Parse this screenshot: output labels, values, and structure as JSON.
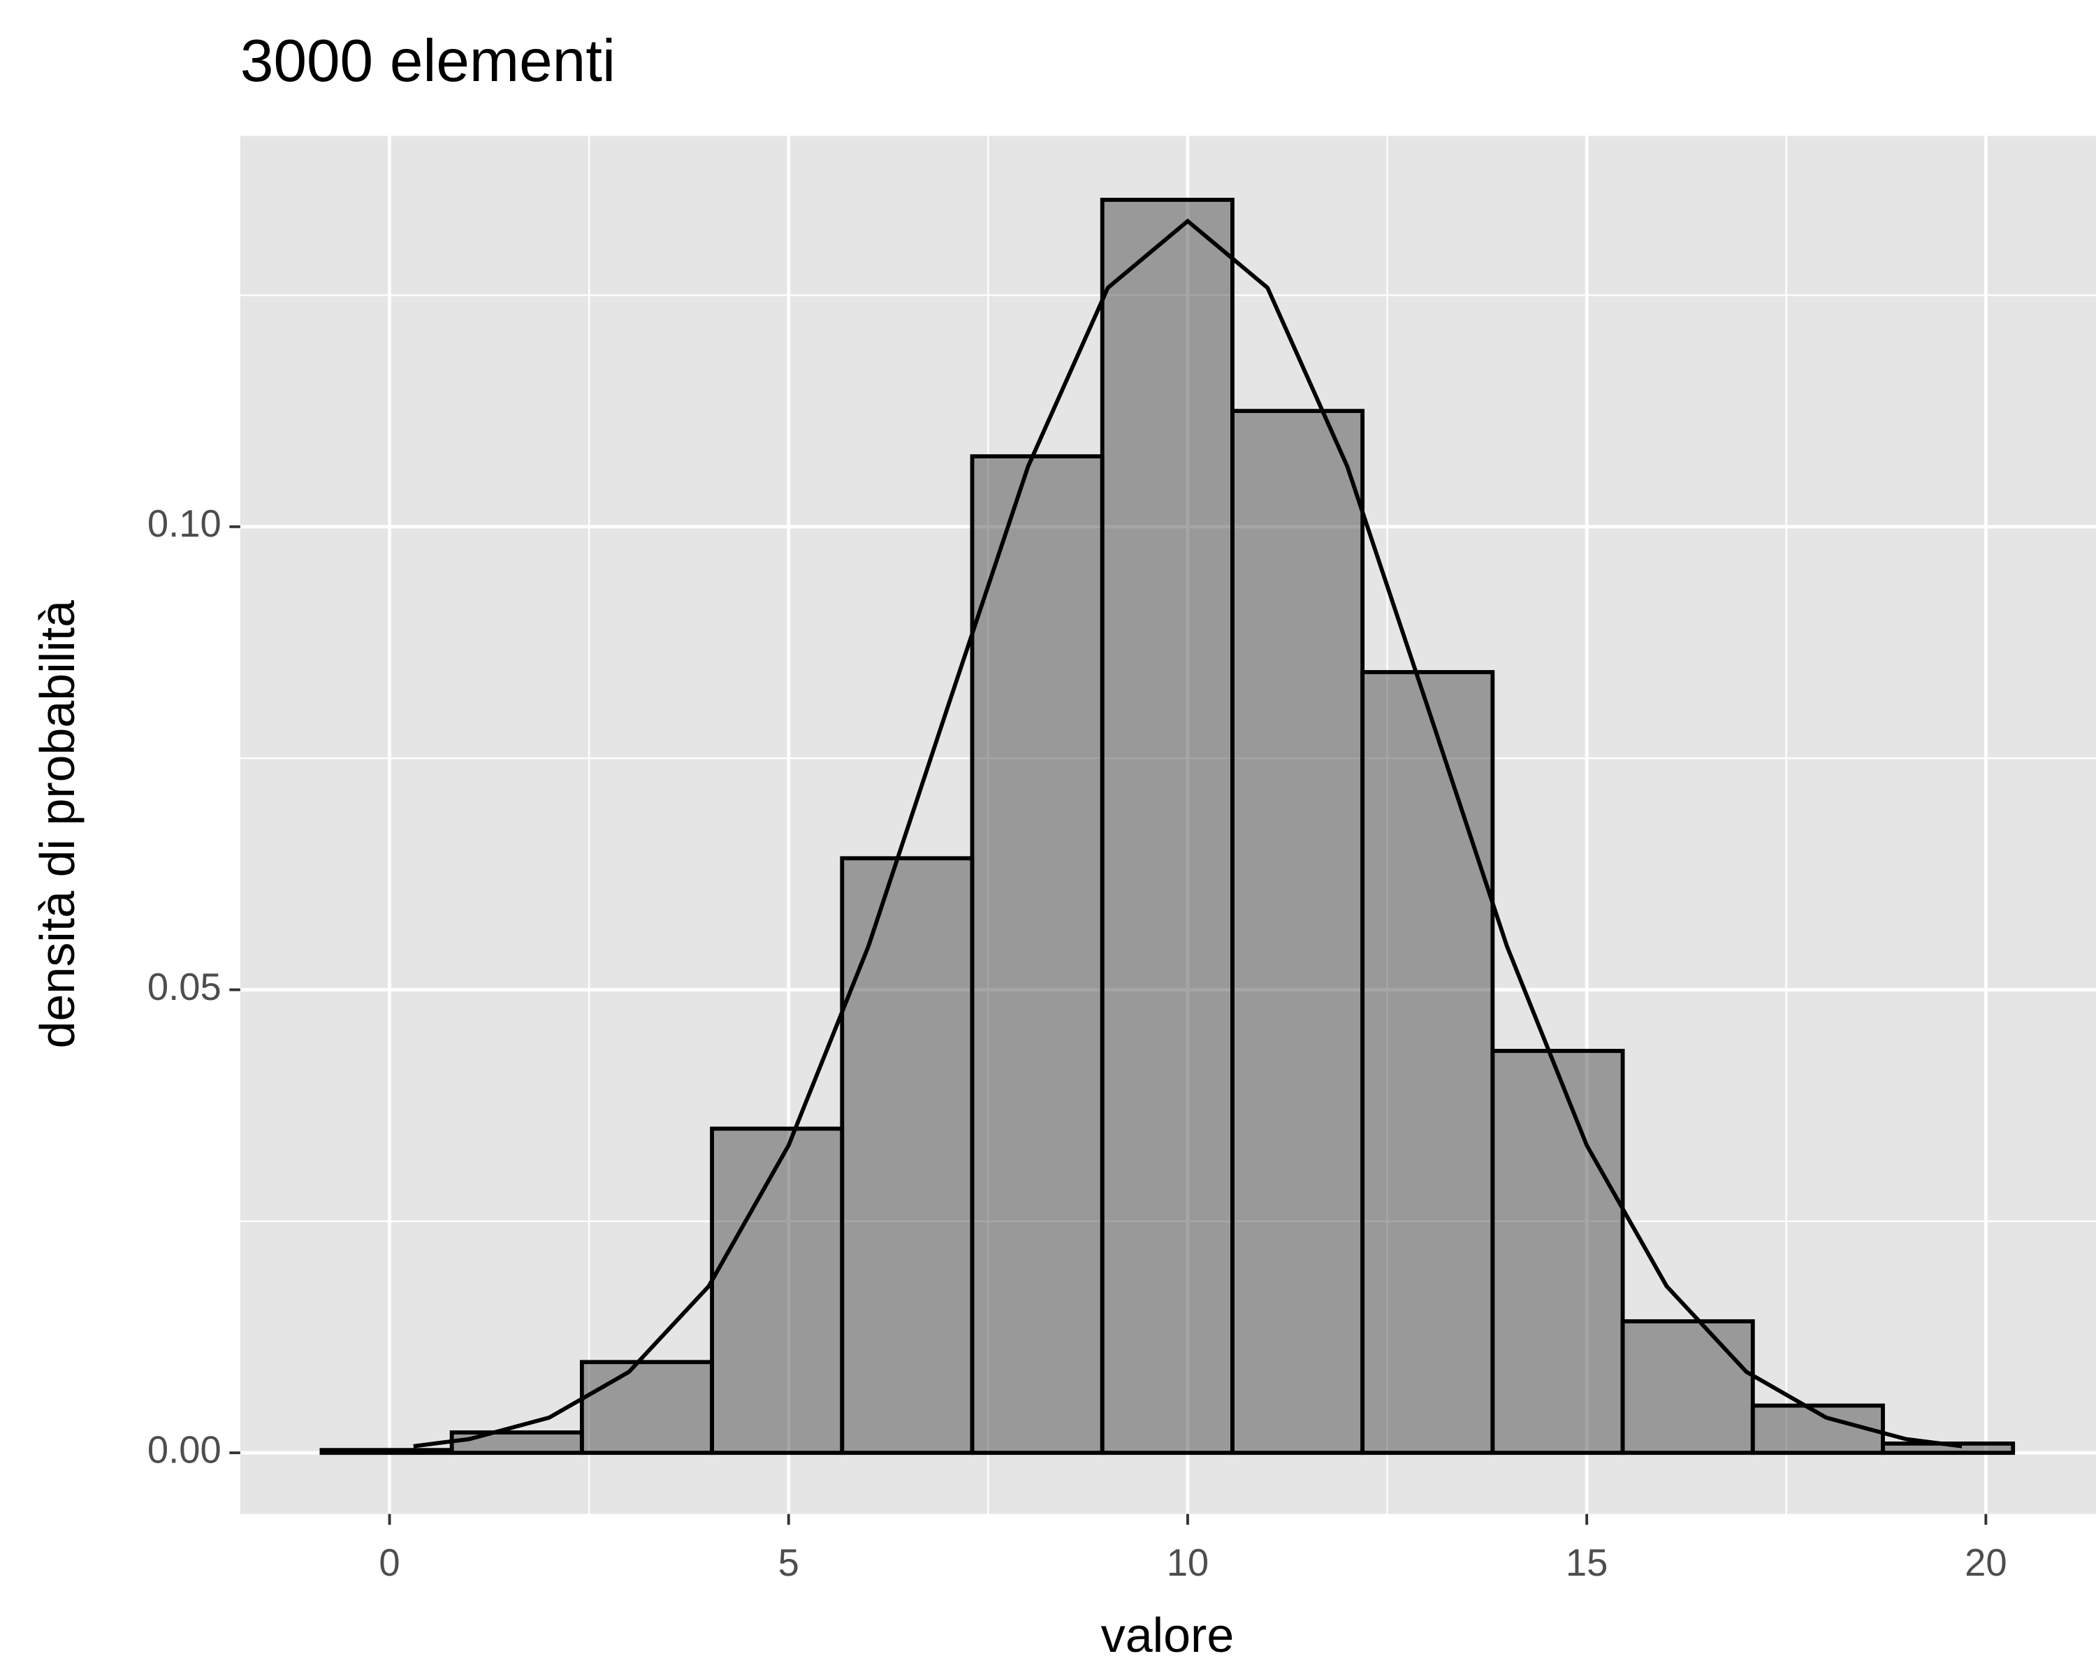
{
  "chart_data": {
    "type": "histogram",
    "title": "3000 elementi",
    "x_label": "valore",
    "y_label": "densità di probabilità",
    "bins": [
      -0.85,
      0.78,
      2.41,
      4.04,
      5.67,
      7.3,
      8.93,
      10.56,
      12.19,
      13.82,
      15.45,
      17.08,
      18.71,
      20.34
    ],
    "values": [
      0.0003,
      0.0022,
      0.0098,
      0.035,
      0.0642,
      0.1076,
      0.1353,
      0.1125,
      0.0843,
      0.0434,
      0.0142,
      0.0051,
      0.001
    ],
    "color": "#4d4d4d",
    "alpha": 0.5,
    "edge_color": "#000000",
    "density": {
      "x": [
        0.3,
        1,
        2,
        3,
        4,
        5,
        6,
        7,
        8,
        9,
        10,
        11,
        12,
        13,
        14,
        15,
        16,
        17,
        18,
        19,
        19.7
      ],
      "values": [
        0.000714,
        0.00148,
        0.0038,
        0.00874,
        0.018,
        0.0332,
        0.0547,
        0.0807,
        0.1065,
        0.1258,
        0.133,
        0.1258,
        0.1065,
        0.0807,
        0.0547,
        0.0332,
        0.018,
        0.00874,
        0.0038,
        0.00148,
        0.000714
      ],
      "color": "#000000"
    },
    "xlim": [
      -1.87,
      21.38
    ],
    "ylim": [
      -0.0066,
      0.1422
    ],
    "xticks": [
      0,
      5,
      10,
      15,
      20
    ],
    "yticks": [
      {
        "value": 0,
        "label": "0.00"
      },
      {
        "value": 0.05,
        "label": "0.05"
      },
      {
        "value": 0.1,
        "label": "0.10"
      }
    ],
    "x_minor_grid": [
      2.5,
      7.5,
      12.5,
      17.5
    ],
    "y_minor_grid": [
      0.025,
      0.075,
      0.125
    ],
    "grid": true
  }
}
